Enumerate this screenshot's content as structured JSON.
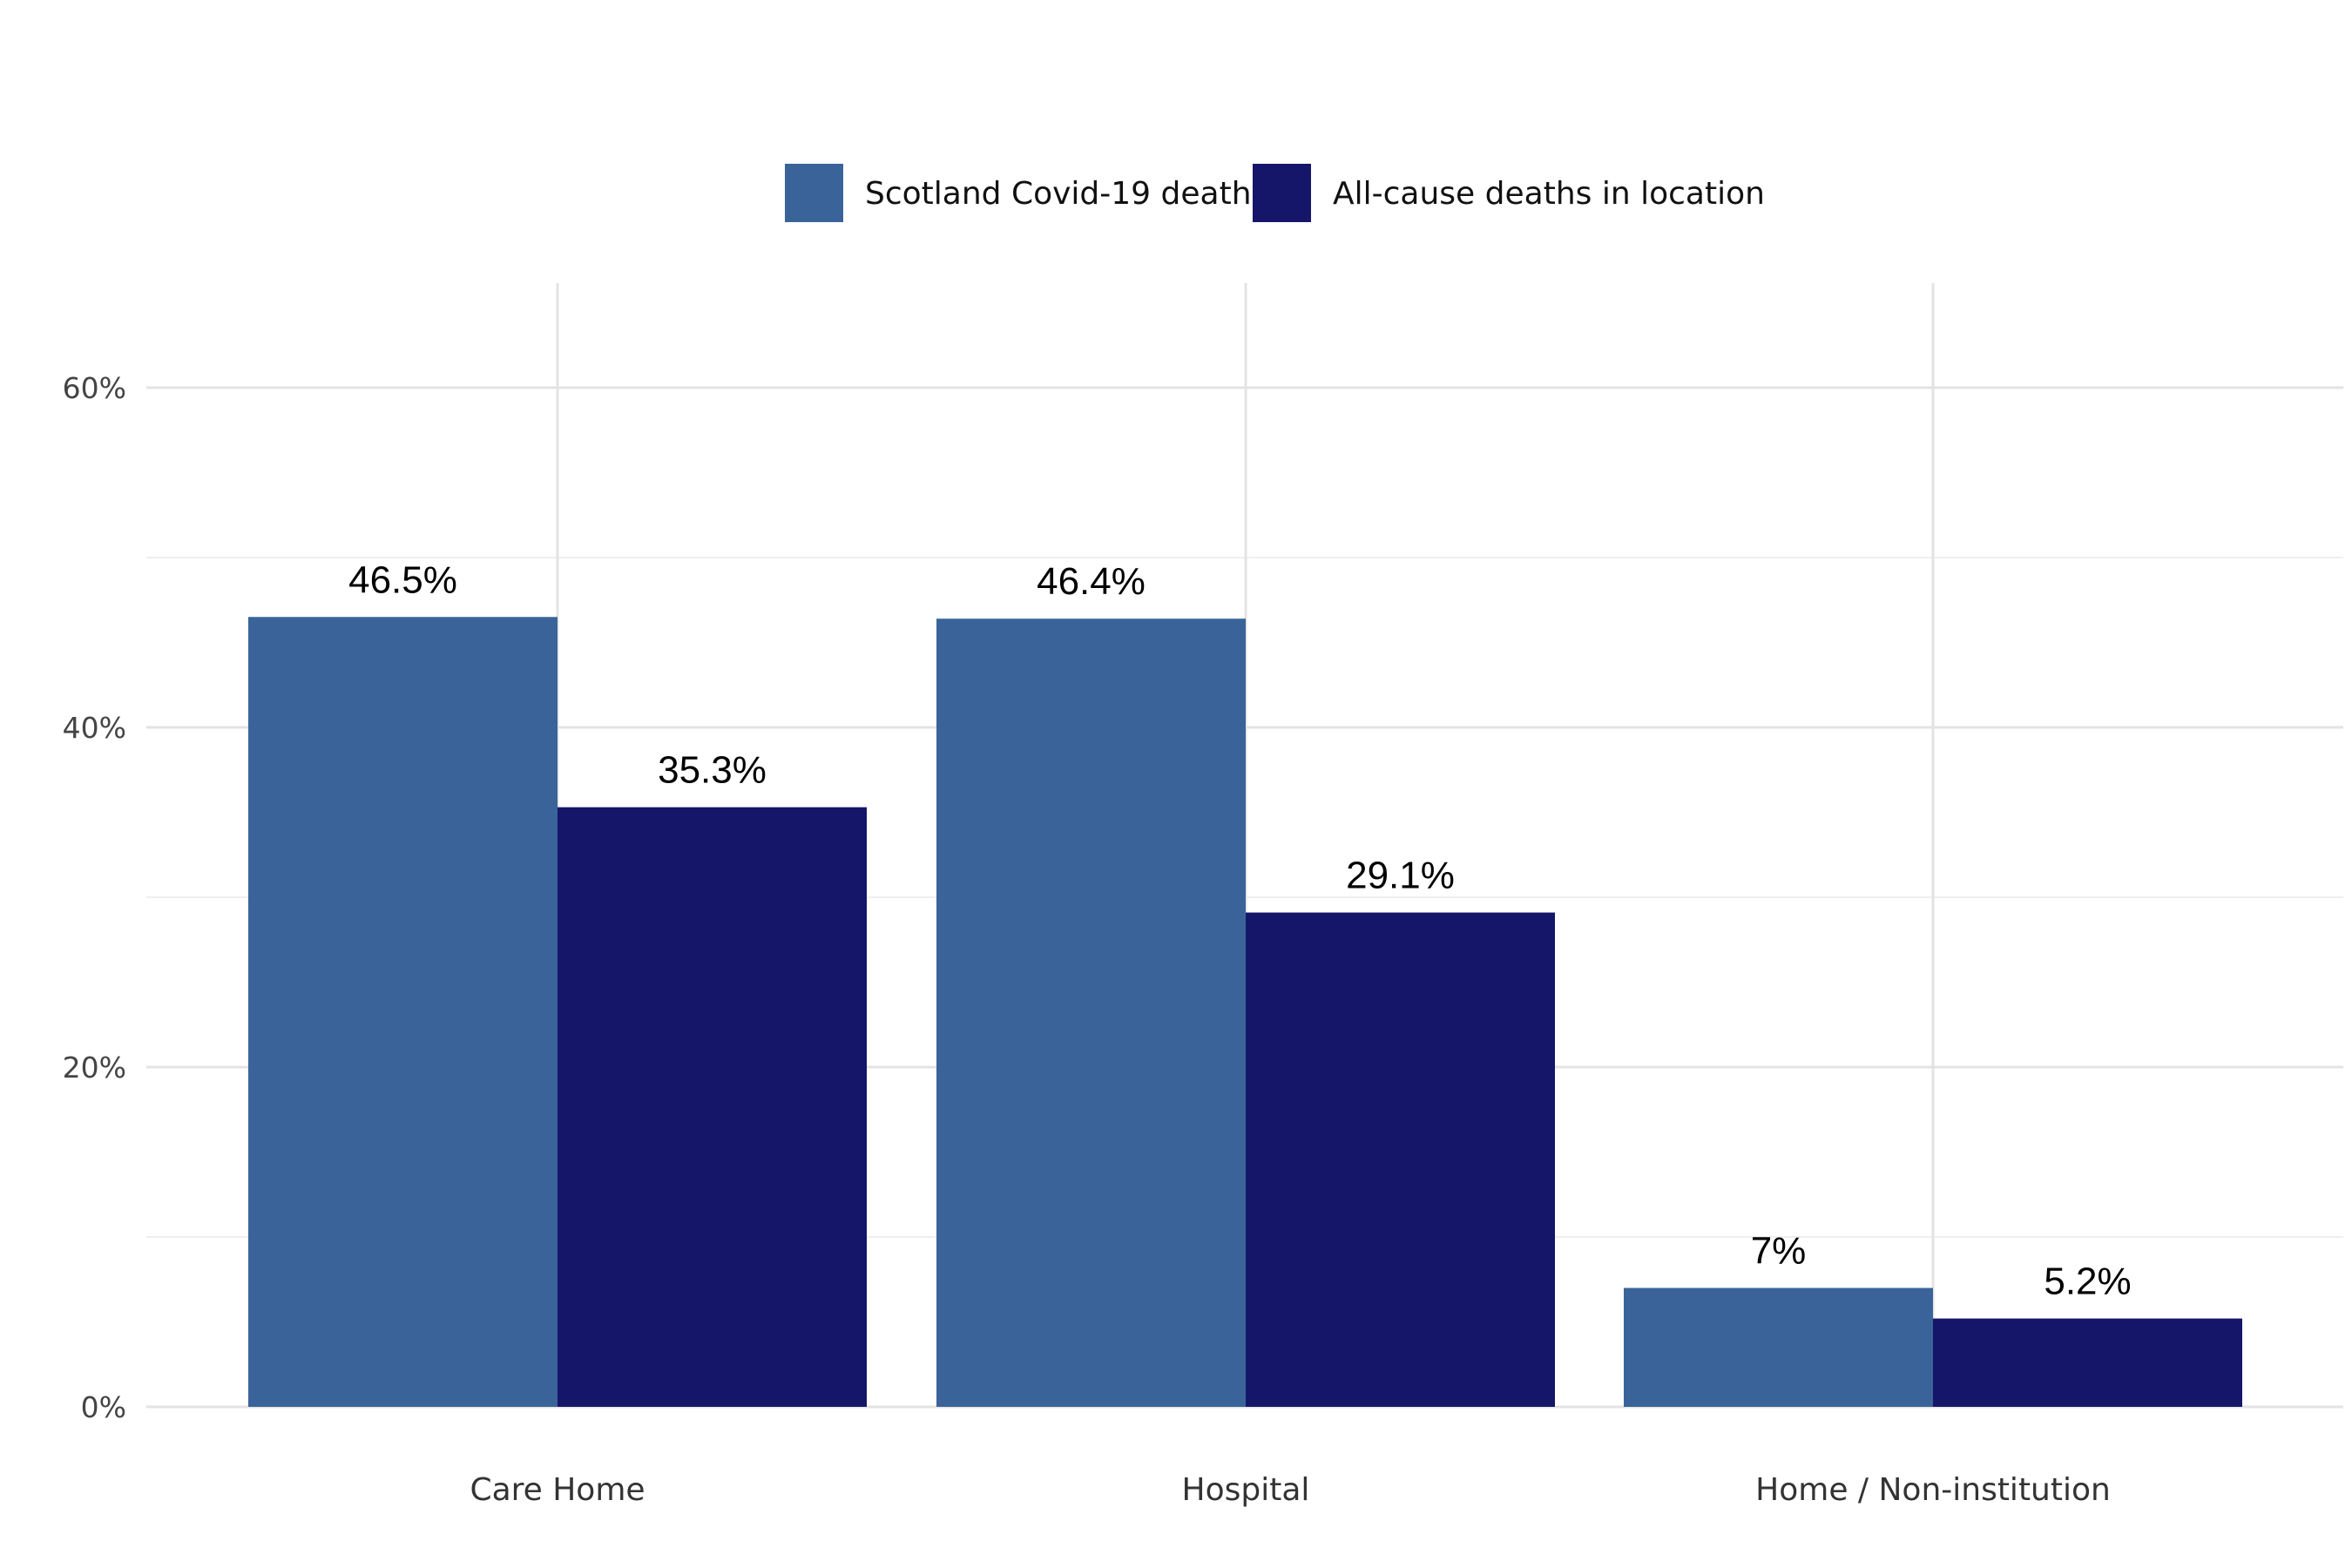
{
  "chart_data": {
    "type": "bar",
    "title": "",
    "xlabel": "",
    "ylabel": "",
    "categories": [
      "Care Home",
      "Hospital",
      "Home / Non-institution"
    ],
    "series": [
      {
        "name": "Scotland Covid-19 deaths",
        "values": [
          46.5,
          46.4,
          7.0
        ],
        "labels": [
          "46.5%",
          "46.4%",
          "7%"
        ],
        "color": "#3a6499"
      },
      {
        "name": "All-cause deaths in location",
        "values": [
          35.3,
          29.1,
          5.2
        ],
        "labels": [
          "35.3%",
          "29.1%",
          "5.2%"
        ],
        "color": "#15156a"
      }
    ],
    "ylim": [
      0,
      65
    ],
    "yticks": [
      0,
      20,
      40,
      60
    ],
    "ytick_labels": [
      "0%",
      "20%",
      "40%",
      "60%"
    ],
    "grid": true,
    "legend_position": "top"
  }
}
